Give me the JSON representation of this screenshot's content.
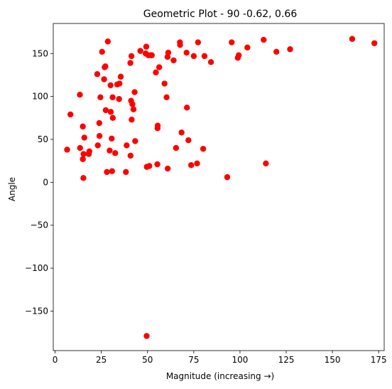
{
  "chart_data": {
    "type": "scatter",
    "title": "Geometric Plot - 90 -0.62, 0.66",
    "xlabel": "Magnitude (increasing →)",
    "ylabel": "Angle",
    "xlim": [
      -1,
      178
    ],
    "ylim": [
      -196,
      185
    ],
    "xticks": [
      0,
      25,
      50,
      75,
      100,
      125,
      150,
      175
    ],
    "yticks": [
      -150,
      -100,
      -50,
      0,
      50,
      100,
      150
    ],
    "grid": false,
    "marker_color": "#ff0000",
    "points": [
      [
        6.5,
        38
      ],
      [
        8.3,
        79
      ],
      [
        13.4,
        102
      ],
      [
        13.5,
        40
      ],
      [
        15,
        65
      ],
      [
        15,
        27
      ],
      [
        15.3,
        5
      ],
      [
        15.4,
        33
      ],
      [
        15.8,
        52
      ],
      [
        18.2,
        33
      ],
      [
        18.5,
        36
      ],
      [
        22.8,
        126
      ],
      [
        23.1,
        43
      ],
      [
        23.9,
        69
      ],
      [
        24,
        54
      ],
      [
        24.5,
        99
      ],
      [
        25.4,
        152
      ],
      [
        26.5,
        120
      ],
      [
        26.8,
        134
      ],
      [
        27.2,
        135
      ],
      [
        27.4,
        84
      ],
      [
        28,
        12
      ],
      [
        28.5,
        164
      ],
      [
        29.5,
        37
      ],
      [
        30,
        113
      ],
      [
        30.1,
        82
      ],
      [
        30.6,
        51
      ],
      [
        30.8,
        13
      ],
      [
        31.1,
        99
      ],
      [
        31.2,
        75
      ],
      [
        32.5,
        34
      ],
      [
        33.6,
        114
      ],
      [
        34.6,
        97
      ],
      [
        34.8,
        115
      ],
      [
        35.5,
        123
      ],
      [
        38.3,
        12
      ],
      [
        38.7,
        43
      ],
      [
        40.7,
        139
      ],
      [
        40.8,
        31
      ],
      [
        41.1,
        95
      ],
      [
        41.3,
        147
      ],
      [
        41.4,
        73
      ],
      [
        41.8,
        91
      ],
      [
        42.4,
        85
      ],
      [
        43,
        105
      ],
      [
        43.3,
        48
      ],
      [
        46.1,
        153
      ],
      [
        49,
        150
      ],
      [
        49.3,
        158
      ],
      [
        49.5,
        -179
      ],
      [
        49.6,
        18
      ],
      [
        50.4,
        148
      ],
      [
        51,
        19
      ],
      [
        51.8,
        148
      ],
      [
        52.3,
        148
      ],
      [
        54.5,
        128
      ],
      [
        55.3,
        21
      ],
      [
        55.4,
        63
      ],
      [
        55.5,
        66
      ],
      [
        56.3,
        134
      ],
      [
        59.2,
        115
      ],
      [
        60.3,
        99
      ],
      [
        60.8,
        146
      ],
      [
        60.9,
        16
      ],
      [
        61.2,
        151
      ],
      [
        64.1,
        142
      ],
      [
        65.4,
        40
      ],
      [
        67.5,
        163
      ],
      [
        67.6,
        160
      ],
      [
        68.4,
        58
      ],
      [
        71.1,
        151
      ],
      [
        71.3,
        87
      ],
      [
        72.1,
        49
      ],
      [
        73.6,
        20
      ],
      [
        75,
        147
      ],
      [
        76.8,
        22
      ],
      [
        77.3,
        163
      ],
      [
        80.1,
        39
      ],
      [
        80.8,
        147
      ],
      [
        84.3,
        140
      ],
      [
        93.1,
        6
      ],
      [
        95.5,
        163
      ],
      [
        98.8,
        145
      ],
      [
        99.3,
        148
      ],
      [
        104,
        157
      ],
      [
        112.8,
        166
      ],
      [
        114,
        22
      ],
      [
        119.7,
        152
      ],
      [
        127.1,
        155
      ],
      [
        160.7,
        167
      ],
      [
        172.7,
        162
      ]
    ]
  }
}
